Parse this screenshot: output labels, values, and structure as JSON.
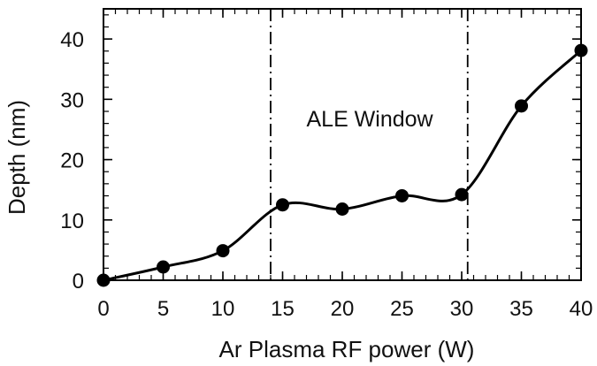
{
  "chart_data": {
    "type": "line",
    "title": "",
    "xlabel": "Ar Plasma RF power (W)",
    "ylabel": "Depth (nm)",
    "xlim": [
      0,
      40
    ],
    "ylim": [
      0,
      45
    ],
    "x_ticks": [
      0,
      5,
      10,
      15,
      20,
      25,
      30,
      35,
      40
    ],
    "y_ticks": [
      0,
      10,
      20,
      30,
      40
    ],
    "grid": false,
    "legend": "none",
    "smooth": true,
    "series": [
      {
        "x": [
          0,
          5,
          10,
          15,
          20,
          25,
          30,
          35,
          40
        ],
        "values": [
          0,
          2.2,
          4.9,
          12.5,
          11.8,
          14.0,
          14.2,
          28.9,
          38.1
        ],
        "color": "#000000",
        "marker": "circle"
      }
    ],
    "reference_lines": [
      {
        "x": 14.0,
        "style": "dash-dot"
      },
      {
        "x": 30.5,
        "style": "dash-dot"
      }
    ],
    "annotations": [
      {
        "text": "ALE Window",
        "x": 22.3,
        "y": 25.5
      }
    ]
  }
}
